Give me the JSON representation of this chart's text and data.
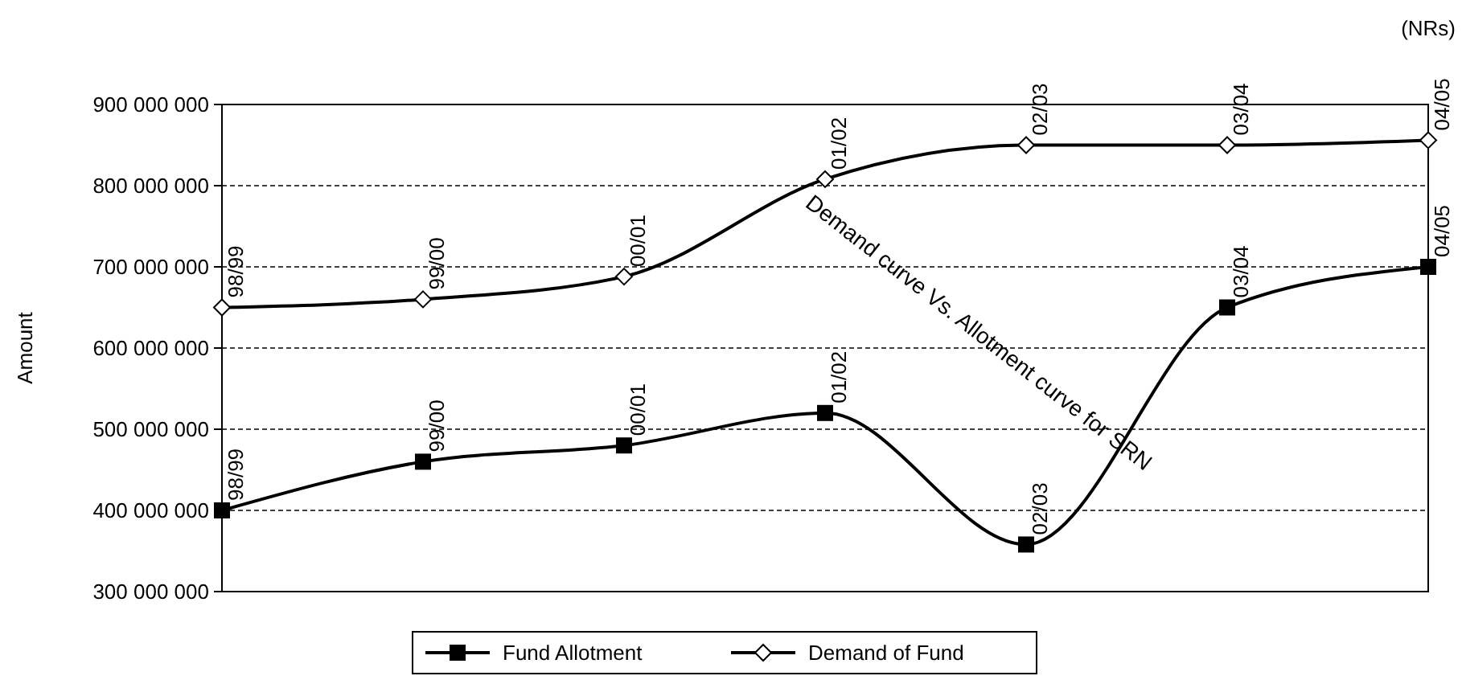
{
  "chart_data": {
    "type": "line",
    "ylabel": "Amount",
    "categories": [
      "98/99",
      "99/00",
      "00/01",
      "01/02",
      "02/03",
      "03/04",
      "04/05"
    ],
    "series": [
      {
        "name": "Fund Allotment",
        "color": "#000000",
        "marker": "square",
        "values": [
          400000000,
          460000000,
          480000000,
          520000000,
          358000000,
          650000000,
          700000000
        ]
      },
      {
        "name": "Demand of Fund",
        "color": "#000000",
        "marker": "diamond",
        "values": [
          650000000,
          660000000,
          688000000,
          808000000,
          850000000,
          850000000,
          856000000
        ]
      }
    ],
    "ylim": [
      300000000,
      900000000
    ],
    "yticks": [
      {
        "value": 300000000,
        "label": "300 000 000"
      },
      {
        "value": 400000000,
        "label": "400 000 000"
      },
      {
        "value": 500000000,
        "label": "500 000 000"
      },
      {
        "value": 600000000,
        "label": "600 000 000"
      },
      {
        "value": 700000000,
        "label": "700 000 000"
      },
      {
        "value": 800000000,
        "label": "800 000 000"
      },
      {
        "value": 900000000,
        "label": "900 000 000"
      }
    ],
    "grid": "y",
    "legend": "bottom",
    "tick_labels": "y",
    "line_style": "solid",
    "annotations": [
      "(NRs)",
      "Demand curve Vs. Allotment curve for SRN"
    ]
  }
}
